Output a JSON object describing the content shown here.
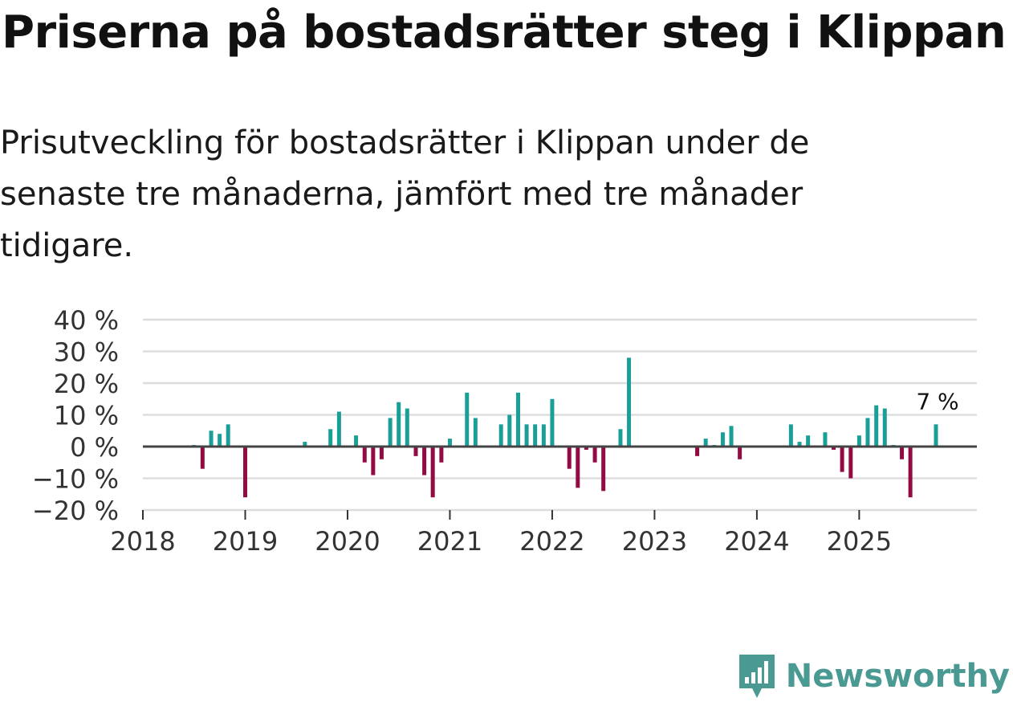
{
  "header": {
    "title": "Priserna på bostadsrätter steg i Klippan",
    "subtitle": "Prisutveckling för bostadsrätter i Klippan under de senaste tre månaderna, jämfört med tre månader tidigare."
  },
  "brand": {
    "name": "Newsworthy"
  },
  "colors": {
    "positive": "#1a9e98",
    "negative": "#930b43",
    "grid": "#dddddd",
    "zero": "#444444",
    "axis": "#333333",
    "brand": "#4a9a93"
  },
  "chart_data": {
    "type": "bar",
    "title": "Priserna på bostadsrätter steg i Klippan",
    "xlabel": "",
    "ylabel": "",
    "x_ticks": [
      2018,
      2019,
      2020,
      2021,
      2022,
      2023,
      2024,
      2025
    ],
    "y_ticks": [
      40,
      30,
      20,
      10,
      0,
      -10,
      -20
    ],
    "y_tick_labels": [
      "40 %",
      "30 %",
      "20 %",
      "10 %",
      "0 %",
      "−10 %",
      "−20 %"
    ],
    "ylim": [
      -20,
      40
    ],
    "xlim": [
      2018.0,
      2026.15
    ],
    "grid": true,
    "annotation": {
      "text": "7 %",
      "date": 2025.75,
      "value": 7
    },
    "series": [
      {
        "name": "Prisutveckling",
        "points": [
          {
            "date": 2018.5,
            "value": 0.5
          },
          {
            "date": 2018.583,
            "value": -7
          },
          {
            "date": 2018.667,
            "value": 5
          },
          {
            "date": 2018.75,
            "value": 4
          },
          {
            "date": 2018.833,
            "value": 7
          },
          {
            "date": 2019.0,
            "value": -16
          },
          {
            "date": 2019.583,
            "value": 1.5
          },
          {
            "date": 2019.833,
            "value": 5.5
          },
          {
            "date": 2019.917,
            "value": 11
          },
          {
            "date": 2020.083,
            "value": 3.5
          },
          {
            "date": 2020.167,
            "value": -5
          },
          {
            "date": 2020.25,
            "value": -9
          },
          {
            "date": 2020.333,
            "value": -4
          },
          {
            "date": 2020.417,
            "value": 9
          },
          {
            "date": 2020.5,
            "value": 14
          },
          {
            "date": 2020.583,
            "value": 12
          },
          {
            "date": 2020.667,
            "value": -3
          },
          {
            "date": 2020.75,
            "value": -9
          },
          {
            "date": 2020.833,
            "value": -16
          },
          {
            "date": 2020.917,
            "value": -5
          },
          {
            "date": 2021.0,
            "value": 2.5
          },
          {
            "date": 2021.167,
            "value": 17
          },
          {
            "date": 2021.25,
            "value": 9
          },
          {
            "date": 2021.5,
            "value": 7
          },
          {
            "date": 2021.583,
            "value": 10
          },
          {
            "date": 2021.667,
            "value": 17
          },
          {
            "date": 2021.75,
            "value": 7
          },
          {
            "date": 2021.833,
            "value": 7
          },
          {
            "date": 2021.917,
            "value": 7
          },
          {
            "date": 2022.0,
            "value": 15
          },
          {
            "date": 2022.167,
            "value": -7
          },
          {
            "date": 2022.25,
            "value": -13
          },
          {
            "date": 2022.333,
            "value": -1
          },
          {
            "date": 2022.417,
            "value": -5
          },
          {
            "date": 2022.5,
            "value": -14
          },
          {
            "date": 2022.667,
            "value": 5.5
          },
          {
            "date": 2022.75,
            "value": 28
          },
          {
            "date": 2023.417,
            "value": -3
          },
          {
            "date": 2023.5,
            "value": 2.5
          },
          {
            "date": 2023.583,
            "value": 0.5
          },
          {
            "date": 2023.667,
            "value": 4.5
          },
          {
            "date": 2023.75,
            "value": 6.5
          },
          {
            "date": 2023.833,
            "value": -4
          },
          {
            "date": 2024.333,
            "value": 7
          },
          {
            "date": 2024.417,
            "value": 1.5
          },
          {
            "date": 2024.5,
            "value": 3.5
          },
          {
            "date": 2024.667,
            "value": 4.5
          },
          {
            "date": 2024.75,
            "value": -1
          },
          {
            "date": 2024.833,
            "value": -8
          },
          {
            "date": 2024.917,
            "value": -10
          },
          {
            "date": 2025.0,
            "value": 3.5
          },
          {
            "date": 2025.083,
            "value": 9
          },
          {
            "date": 2025.167,
            "value": 13
          },
          {
            "date": 2025.25,
            "value": 12
          },
          {
            "date": 2025.333,
            "value": 0.5
          },
          {
            "date": 2025.417,
            "value": -4
          },
          {
            "date": 2025.5,
            "value": -16
          },
          {
            "date": 2025.75,
            "value": 7
          }
        ]
      }
    ]
  }
}
